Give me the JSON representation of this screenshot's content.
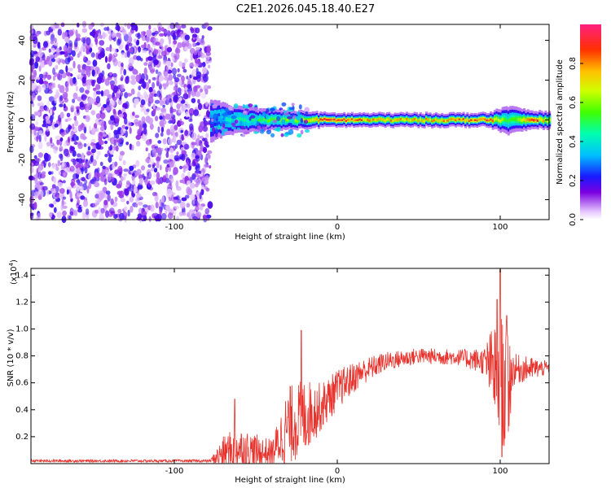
{
  "title": "C2E1.2026.045.18.40.E27",
  "chart_data": [
    {
      "type": "heatmap",
      "name": "spectrogram",
      "xlabel": "Height of straight line (km)",
      "ylabel": "Frequency (Hz)",
      "xlim": [
        -188,
        130
      ],
      "ylim": [
        -50,
        48
      ],
      "x_ticks": [
        -100,
        0,
        100
      ],
      "y_ticks": [
        -40,
        -20,
        0,
        20,
        40
      ],
      "colorbar": {
        "label": "Normalized spectral amplitude",
        "range": [
          0.0,
          1.0
        ],
        "ticks": [
          "0.0",
          "0.2",
          "0.4",
          "0.6",
          "0.8"
        ],
        "tick_values": [
          0.0,
          0.2,
          0.4,
          0.6,
          0.8
        ]
      },
      "noise_region": {
        "x": [
          -188,
          -78
        ],
        "level": 0.08
      },
      "signal_band": {
        "center_hz": 0,
        "points": [
          {
            "x": -78,
            "half_width_hz": 6,
            "amplitude": 0.25
          },
          {
            "x": -66,
            "half_width_hz": 4,
            "amplitude": 0.45
          },
          {
            "x": -44,
            "half_width_hz": 3,
            "amplitude": 0.55
          },
          {
            "x": -20,
            "half_width_hz": 2.5,
            "amplitude": 0.7
          },
          {
            "x": -6,
            "half_width_hz": 2,
            "amplitude": 0.95
          },
          {
            "x": 20,
            "half_width_hz": 2,
            "amplitude": 0.8
          },
          {
            "x": 60,
            "half_width_hz": 2,
            "amplitude": 0.8
          },
          {
            "x": 92,
            "half_width_hz": 2,
            "amplitude": 0.9
          },
          {
            "x": 104,
            "half_width_hz": 4,
            "amplitude": 0.5
          },
          {
            "x": 120,
            "half_width_hz": 2.5,
            "amplitude": 0.9
          },
          {
            "x": 130,
            "half_width_hz": 2.5,
            "amplitude": 0.7
          }
        ]
      }
    },
    {
      "type": "line",
      "name": "snr",
      "xlabel": "Height of straight line (km)",
      "ylabel": "SNR (10 * v/v)",
      "scale_label": "(x10^4)",
      "scale_base": "(x10",
      "scale_exp": "4",
      "scale_close": ")",
      "color": "#e8322c",
      "xlim": [
        -188,
        130
      ],
      "ylim": [
        0,
        1.45
      ],
      "x_ticks": [
        -100,
        0,
        100
      ],
      "y_ticks": [
        0.2,
        0.4,
        0.6,
        0.8,
        1.0,
        1.2,
        1.4
      ],
      "y_tick_labels": [
        "0.2",
        "0.4",
        "0.6",
        "0.8",
        "1.0",
        "1.2",
        "1.4"
      ],
      "envelope": [
        {
          "x": -188,
          "base": 0.02,
          "spread": 0.01
        },
        {
          "x": -78,
          "base": 0.02,
          "spread": 0.01
        },
        {
          "x": -70,
          "base": 0.08,
          "spread": 0.12
        },
        {
          "x": -62,
          "base": 0.12,
          "spread": 0.16
        },
        {
          "x": -50,
          "base": 0.08,
          "spread": 0.14
        },
        {
          "x": -40,
          "base": 0.08,
          "spread": 0.1
        },
        {
          "x": -30,
          "base": 0.28,
          "spread": 0.3
        },
        {
          "x": -20,
          "base": 0.35,
          "spread": 0.28
        },
        {
          "x": -10,
          "base": 0.42,
          "spread": 0.18
        },
        {
          "x": 0,
          "base": 0.55,
          "spread": 0.15
        },
        {
          "x": 15,
          "base": 0.68,
          "spread": 0.1
        },
        {
          "x": 30,
          "base": 0.76,
          "spread": 0.07
        },
        {
          "x": 50,
          "base": 0.8,
          "spread": 0.06
        },
        {
          "x": 75,
          "base": 0.79,
          "spread": 0.06
        },
        {
          "x": 90,
          "base": 0.76,
          "spread": 0.1
        },
        {
          "x": 96,
          "base": 0.7,
          "spread": 0.35
        },
        {
          "x": 100,
          "base": 0.6,
          "spread": 0.5
        },
        {
          "x": 104,
          "base": 0.55,
          "spread": 0.55
        },
        {
          "x": 108,
          "base": 0.7,
          "spread": 0.12
        },
        {
          "x": 130,
          "base": 0.71,
          "spread": 0.05
        }
      ],
      "peaks": [
        {
          "x": -63,
          "y": 0.48
        },
        {
          "x": -22,
          "y": 0.99
        },
        {
          "x": 98,
          "y": 1.22
        },
        {
          "x": 100,
          "y": 1.44
        },
        {
          "x": 104,
          "y": 1.1
        },
        {
          "x": 101,
          "y": 0.05
        }
      ]
    }
  ]
}
